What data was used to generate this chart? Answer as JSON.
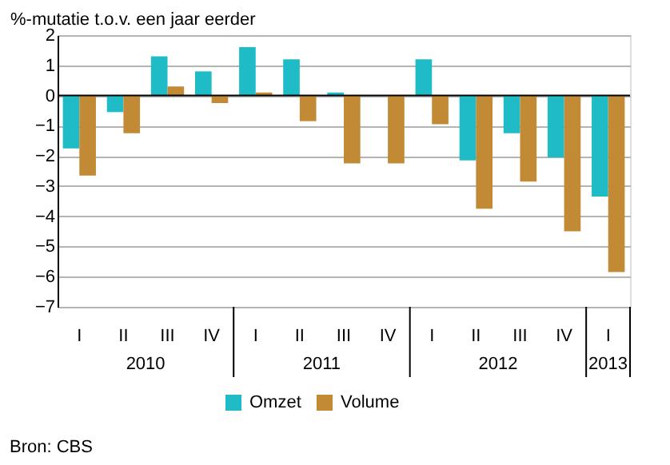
{
  "chart_data": {
    "type": "bar",
    "ylabel": "%-mutatie t.o.v. een jaar eerder",
    "categories": [
      "I",
      "II",
      "III",
      "IV",
      "I",
      "II",
      "III",
      "IV",
      "I",
      "II",
      "III",
      "IV",
      "I"
    ],
    "series": [
      {
        "name": "Omzet",
        "color": "#1fbcc8",
        "values": [
          -1.75,
          -0.55,
          1.3,
          0.8,
          1.6,
          1.2,
          0.1,
          null,
          1.2,
          -2.15,
          -1.25,
          -2.05,
          -3.35
        ]
      },
      {
        "name": "Volume",
        "color": "#c28a35",
        "values": [
          -2.65,
          -1.25,
          0.3,
          -0.25,
          0.1,
          -0.85,
          -2.25,
          -2.25,
          -0.95,
          -3.75,
          -2.85,
          -4.5,
          -5.85
        ]
      }
    ],
    "ylim": [
      -7,
      2
    ],
    "yticks": [
      -7,
      -6,
      -5,
      -4,
      -3,
      -2,
      -1,
      0,
      1,
      2
    ],
    "grid": "y",
    "legend": "bottom",
    "annotations": [
      "2010",
      "2011",
      "2012",
      "2013",
      "Bron: CBS"
    ]
  }
}
